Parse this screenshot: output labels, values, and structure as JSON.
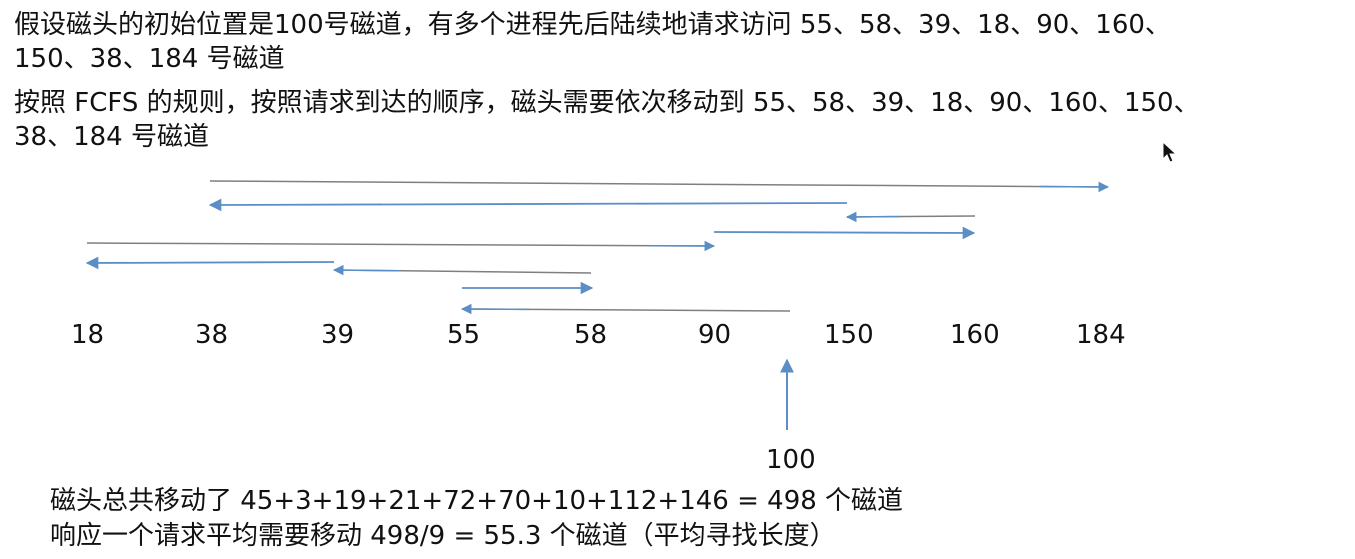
{
  "problem": {
    "line1": "假设磁头的初始位置是100号磁道，有多个进程先后陆续地请求访问 55、58、39、18、90、160、",
    "line2": "150、38、184 号磁道",
    "line3": "按照 FCFS 的规则，按照请求到达的顺序，磁头需要依次移动到 55、58、39、18、90、160、150、",
    "line4": "38、184 号磁道"
  },
  "diagram": {
    "start_label": "100",
    "track_labels": [
      "18",
      "38",
      "39",
      "55",
      "58",
      "90",
      "150",
      "160",
      "184"
    ],
    "arrow_color": "#5b8ec6",
    "line_color": "#7f7f7f",
    "start_track": 100,
    "sequence": [
      100,
      55,
      58,
      39,
      18,
      90,
      160,
      150,
      38,
      184
    ]
  },
  "summary": {
    "line1": "磁头总共移动了  45+3+19+21+72+70+10+112+146 = 498  个磁道",
    "line2": "响应一个请求平均需要移动 498/9 = 55.3 个磁道（平均寻找长度）"
  }
}
